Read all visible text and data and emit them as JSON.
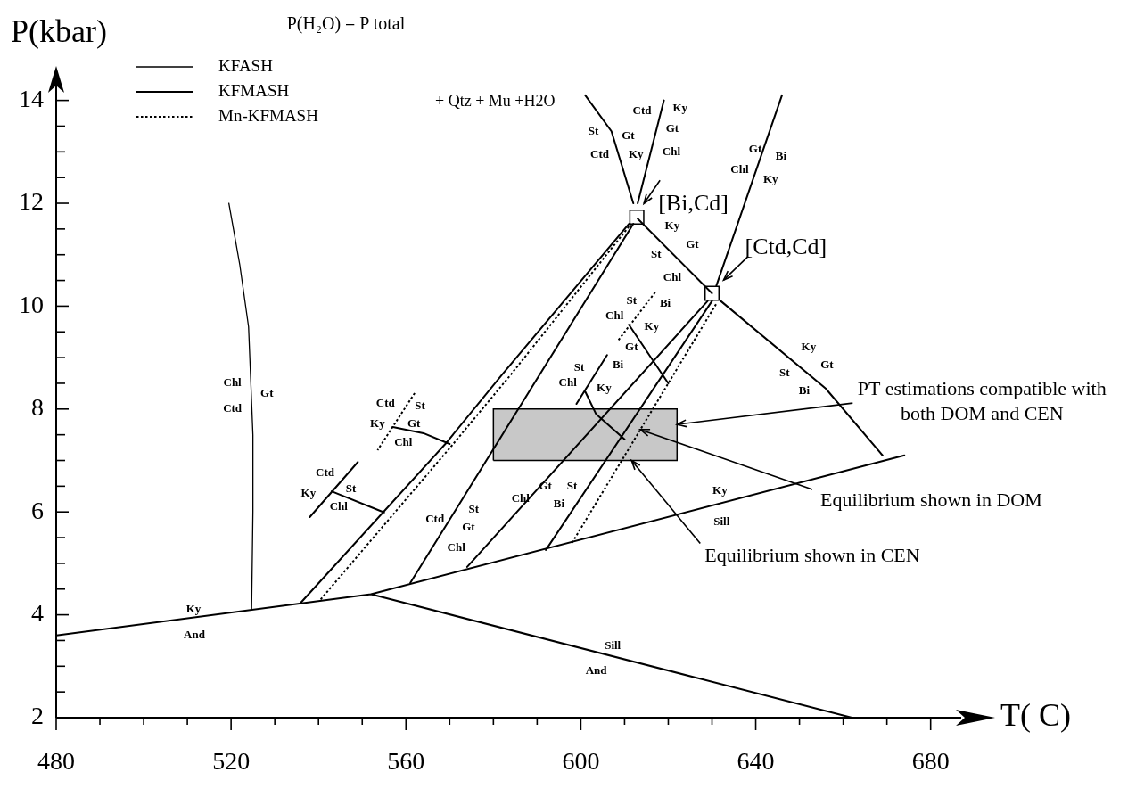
{
  "chart_data": {
    "type": "line",
    "title": "P(H₂O) = P total",
    "xlabel": "T( C)",
    "ylabel": "P(kbar)",
    "xlim": [
      480,
      687
    ],
    "ylim": [
      2,
      14.6
    ],
    "xticks": [
      480,
      {
        "value": 490,
        "label": null
      },
      {
        "value": 500,
        "label": null
      },
      {
        "value": 510,
        "label": null
      },
      520,
      {
        "value": 530,
        "label": null
      },
      {
        "value": 540,
        "label": null
      },
      {
        "value": 550,
        "label": null
      },
      560,
      {
        "value": 570,
        "label": null
      },
      {
        "value": 580,
        "label": null
      },
      {
        "value": 590,
        "label": null
      },
      600,
      {
        "value": 610,
        "label": null
      },
      {
        "value": 620,
        "label": null
      },
      {
        "value": 630,
        "label": null
      },
      640,
      {
        "value": 650,
        "label": null
      },
      {
        "value": 660,
        "label": null
      },
      {
        "value": 670,
        "label": null
      },
      680
    ],
    "yticks": [
      2,
      {
        "value": 2.5,
        "label": null
      },
      {
        "value": 3,
        "label": null
      },
      {
        "value": 3.5,
        "label": null
      },
      4,
      {
        "value": 4.5,
        "label": null
      },
      {
        "value": 5,
        "label": null
      },
      {
        "value": 5.5,
        "label": null
      },
      6,
      {
        "value": 6.5,
        "label": null
      },
      {
        "value": 7,
        "label": null
      },
      {
        "value": 7.5,
        "label": null
      },
      8,
      {
        "value": 8.5,
        "label": null
      },
      {
        "value": 9,
        "label": null
      },
      {
        "value": 9.5,
        "label": null
      },
      10,
      {
        "value": 10.5,
        "label": null
      },
      {
        "value": 11,
        "label": null
      },
      {
        "value": 11.5,
        "label": null
      },
      12,
      {
        "value": 12.5,
        "label": null
      },
      {
        "value": 13,
        "label": null
      },
      {
        "value": 13.5,
        "label": null
      },
      14
    ],
    "legend": "top left",
    "marker": "none",
    "series": [
      {
        "name": "KFASH",
        "line_style": "solid",
        "color": "#000000",
        "x": [
          519.5,
          522,
          524,
          525,
          525,
          524.7
        ],
        "values": [
          12,
          10.8,
          9.6,
          7.5,
          6,
          4.1
        ]
      },
      {
        "name": "KFMASH",
        "line_style": "solid",
        "color": "#000000",
        "x": [
          536,
          569,
          582,
          611,
          null,
          561,
          612,
          null,
          574,
          629,
          null,
          592,
          630,
          null,
          613,
          630,
          null,
          601,
          607,
          612,
          null,
          619,
          613,
          null,
          646,
          631,
          null,
          632,
          656,
          669,
          null,
          599,
          606,
          null,
          601,
          603.5,
          610,
          null,
          611,
          620,
          null,
          549,
          538,
          null,
          543,
          555,
          null,
          557,
          564,
          570
        ],
        "values": [
          4.24,
          7.32,
          8.67,
          11.6,
          null,
          4.62,
          11.6,
          null,
          4.93,
          10.1,
          null,
          5.26,
          10.1,
          null,
          11.7,
          10.25,
          null,
          14.1,
          13.4,
          12.0,
          null,
          14.0,
          12.0,
          null,
          14.1,
          10.4,
          null,
          10.1,
          8.4,
          7.1,
          null,
          8.1,
          9.05,
          null,
          8.34,
          7.9,
          7.41,
          null,
          9.64,
          8.5,
          null,
          6.97,
          5.9,
          null,
          6.4,
          5.99,
          null,
          7.65,
          7.53,
          7.32
        ]
      },
      {
        "name": "Mn-KFMASH",
        "line_style": "dotted",
        "color": "#000000",
        "x": [
          540.5,
          570.5,
          584,
          611.5,
          null,
          598,
          631,
          null,
          617,
          608.5,
          null,
          562,
          553.5
        ],
        "values": [
          4.3,
          7.29,
          8.67,
          11.6,
          null,
          5.4,
          10.05,
          null,
          10.27,
          9.33,
          null,
          8.31,
          7.2
        ]
      },
      {
        "line_style": "solid",
        "color": "#000000",
        "x": [
          480,
          552,
          662,
          null,
          552,
          674
        ],
        "values": [
          3.6,
          4.4,
          2.0,
          null,
          4.4,
          7.1
        ]
      },
      {
        "type": "scatter",
        "marker": "square",
        "color": "#000000",
        "x": [
          612.8,
          630
        ],
        "values": [
          11.73,
          10.25
        ]
      },
      {
        "type": "area",
        "color": "#c8c8c8",
        "x": [
          580,
          580,
          622,
          622,
          580
        ],
        "values": [
          7,
          8,
          8,
          7,
          7
        ]
      }
    ],
    "annotations": [
      {
        "text": "PT estimations compatible with both DOM and CEN",
        "x": 622,
        "y": 7.7
      },
      {
        "text": "Equilibrium shown in DOM",
        "x": 613.6,
        "y": 7.6
      },
      {
        "text": "Equilibrium shown in CEN",
        "x": 611.6,
        "y": 7.0
      },
      {
        "text": "[Bi,Cd]",
        "x": 612.8,
        "y": 11.7
      },
      {
        "text": "[Ctd,Cd]",
        "x": 630,
        "y": 10.3
      },
      "+ Qtz + Mu +H2O",
      "Chl",
      "Gt",
      "Ctd",
      "Ky",
      "And",
      "Sill",
      "And",
      "Ky",
      "Sill",
      "Ctd",
      "St",
      "Ky",
      "Chl",
      "Ctd",
      "St",
      "Ky",
      "Gt",
      "Chl",
      "Ctd",
      "St",
      "Gt",
      "Chl",
      "Gt",
      "St",
      "Chl",
      "Bi",
      "St",
      "Bi",
      "Chl",
      "Ky",
      "St",
      "Bi",
      "Chl",
      "Ky",
      "Gt",
      "Ky",
      "Gt",
      "St",
      "Bi",
      "Ky",
      "Gt",
      "St",
      "Chl",
      "St",
      "Gt",
      "Ctd",
      "Ky",
      "Ctd",
      "Ky",
      "Gt",
      "Chl",
      "Gt",
      "Bi",
      "Chl",
      "Ky"
    ]
  }
}
